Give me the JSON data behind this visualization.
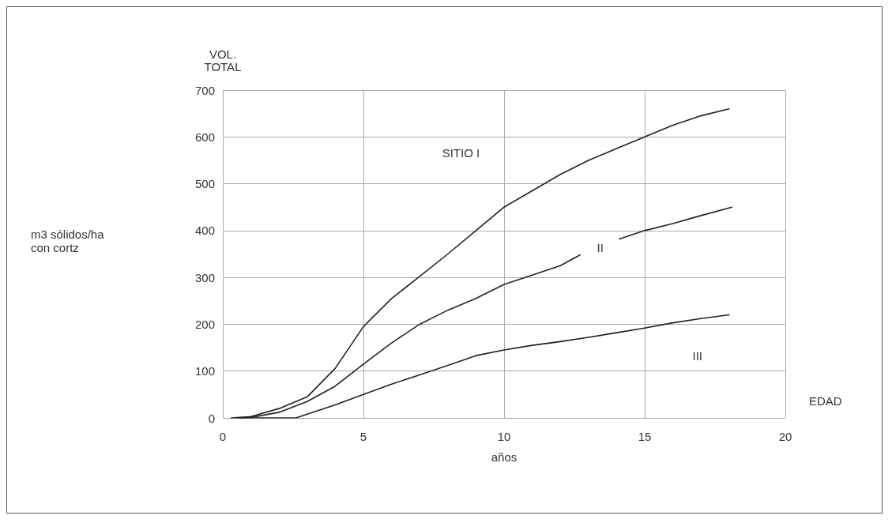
{
  "chart_data": {
    "type": "line",
    "xlabel": "años",
    "ylabel": "VOL. TOTAL",
    "annotations": [
      "m3 sólidos/ha\ncon cortz",
      "EDAD",
      "SITIO I",
      "II",
      "III"
    ],
    "series": [
      {
        "color": "#222222",
        "x": [
          0.3,
          1,
          2,
          3,
          4,
          5,
          6,
          7,
          8,
          9,
          10,
          11,
          12,
          13,
          14,
          15,
          16,
          17,
          18
        ],
        "values": [
          0,
          3,
          20,
          45,
          106,
          195,
          255,
          302,
          350,
          400,
          450,
          485,
          520,
          550,
          575,
          600,
          625,
          645,
          660
        ]
      },
      {
        "color": "#222222",
        "x": [
          0.6,
          1,
          2,
          3,
          4,
          5,
          6,
          7,
          8,
          9,
          10,
          11,
          12,
          12.7,
          13.4,
          14.1,
          15,
          16,
          17,
          18.1
        ],
        "values": [
          0,
          1,
          12,
          35,
          68,
          115,
          160,
          200,
          230,
          255,
          285,
          305,
          325,
          348,
          null,
          382,
          400,
          415,
          432,
          450
        ]
      },
      {
        "color": "#222222",
        "x": [
          0.5,
          1,
          2,
          2.6,
          3,
          4,
          5,
          6,
          7,
          8,
          9,
          10,
          11,
          12,
          13,
          14,
          15,
          16,
          17,
          18
        ],
        "values": [
          0,
          0,
          0,
          0,
          8,
          28,
          50,
          72,
          92,
          112,
          133,
          145,
          155,
          163,
          172,
          182,
          192,
          203,
          212,
          220
        ]
      }
    ],
    "xlim": [
      0,
      20
    ],
    "xticks": [
      0,
      5,
      10,
      15,
      20
    ],
    "ylim": [
      0,
      700
    ],
    "yticks": [
      0,
      100,
      200,
      300,
      400,
      500,
      600,
      700
    ],
    "grid": true,
    "marker": "none",
    "line_style": "solid"
  }
}
